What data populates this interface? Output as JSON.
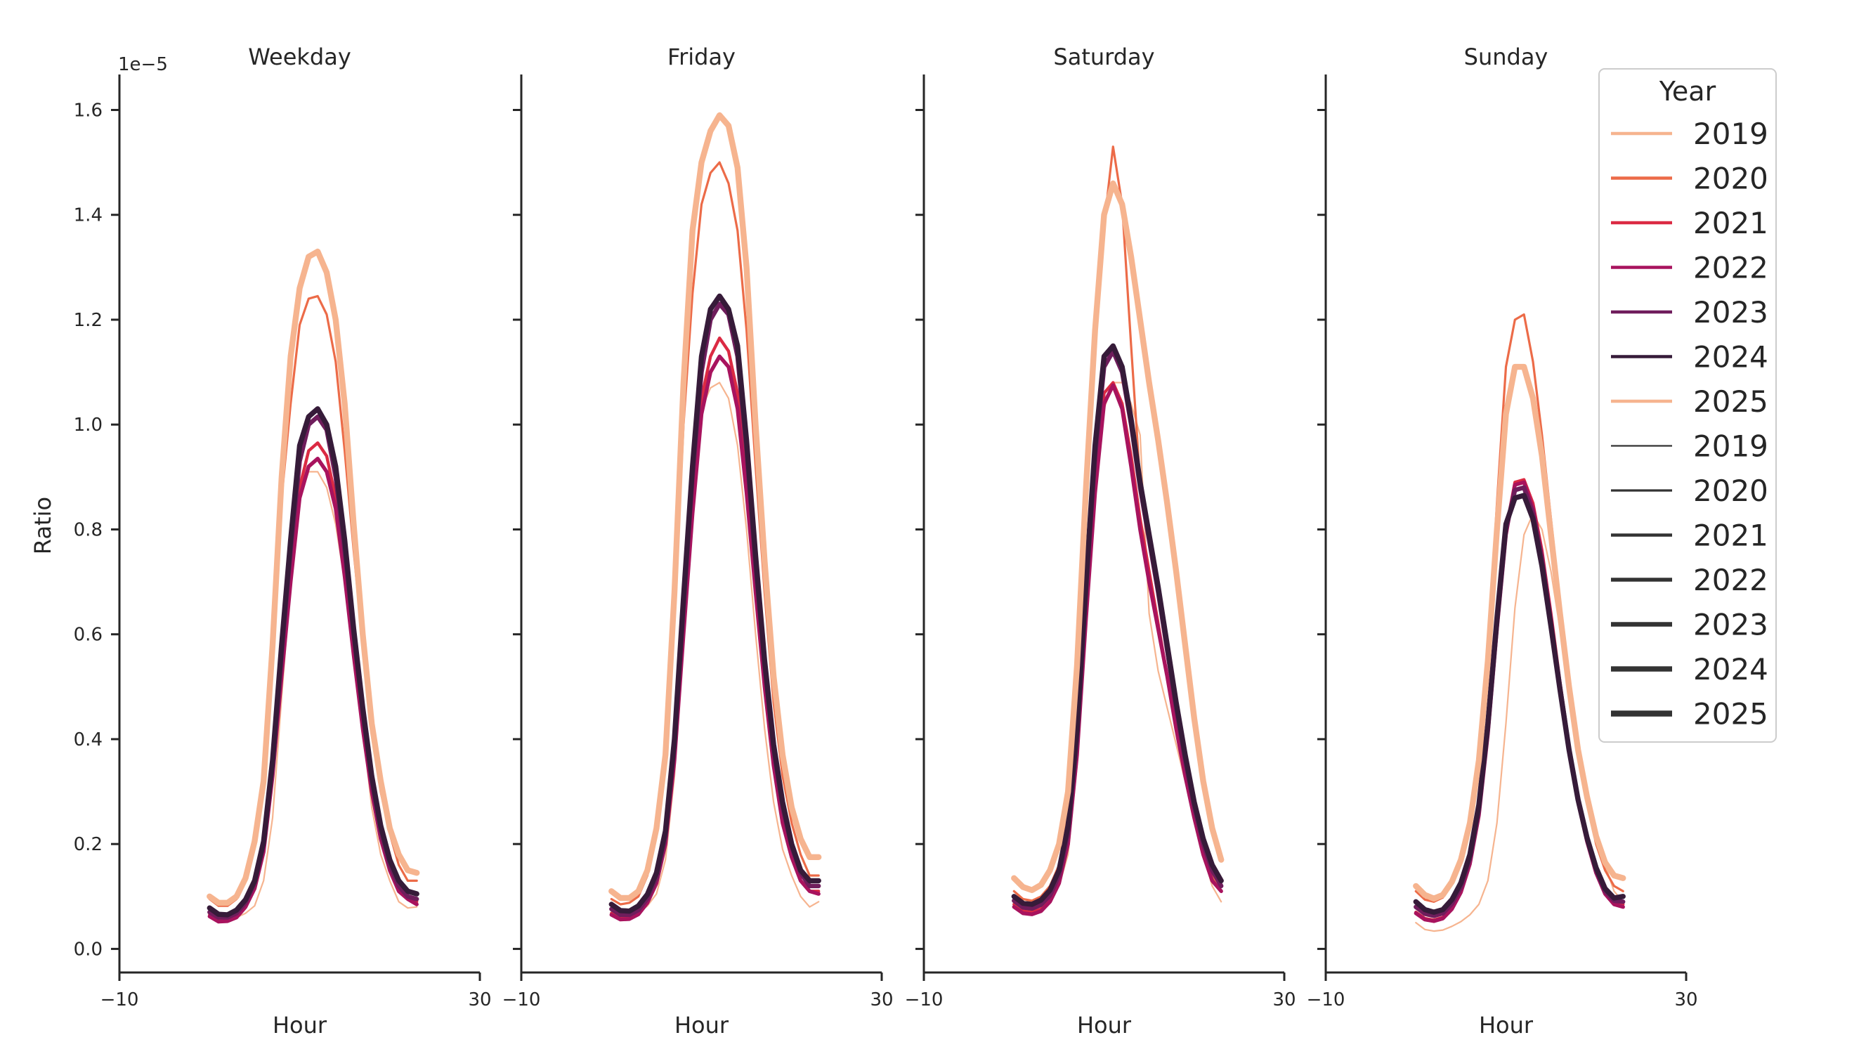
{
  "chart_data": {
    "type": "line",
    "ylabel": "Ratio",
    "y_offset_label": "1e−5",
    "y_ticks": [
      "0.0",
      "0.2",
      "0.4",
      "0.6",
      "0.8",
      "1.0",
      "1.2",
      "1.4",
      "1.6"
    ],
    "ylim": [
      -0.045,
      1.665
    ],
    "xlabel": "Hour",
    "x_ticks": [
      "−10",
      "30"
    ],
    "xlim": [
      -10,
      30
    ],
    "legend": {
      "title": "Year",
      "placement": "upper-right",
      "hue_entries": [
        "2019",
        "2020",
        "2021",
        "2022",
        "2023",
        "2024",
        "2025"
      ],
      "size_entries": [
        "2019",
        "2020",
        "2021",
        "2022",
        "2023",
        "2024",
        "2025"
      ]
    },
    "colors": {
      "2019": "#f6b48f",
      "2020": "#ec6b48",
      "2021": "#db2a43",
      "2022": "#a8135e",
      "2023": "#6f1d5c",
      "2024": "#361b39",
      "2025": "#f6b48f"
    },
    "hours": [
      0,
      1,
      2,
      3,
      4,
      5,
      6,
      7,
      8,
      9,
      10,
      11,
      12,
      13,
      14,
      15,
      16,
      17,
      18,
      19,
      20,
      21,
      22,
      23
    ],
    "panels": [
      {
        "title": "Weekday",
        "series": [
          {
            "year": "2019",
            "values": [
              0.062,
              0.05,
              0.052,
              0.06,
              0.068,
              0.082,
              0.13,
              0.25,
              0.48,
              0.7,
              0.86,
              0.91,
              0.91,
              0.88,
              0.81,
              0.7,
              0.56,
              0.42,
              0.27,
              0.18,
              0.13,
              0.09,
              0.078,
              0.08
            ]
          },
          {
            "year": "2020",
            "values": [
              0.095,
              0.082,
              0.082,
              0.095,
              0.13,
              0.2,
              0.32,
              0.57,
              0.86,
              1.04,
              1.19,
              1.24,
              1.245,
              1.21,
              1.12,
              0.95,
              0.76,
              0.58,
              0.41,
              0.3,
              0.22,
              0.16,
              0.13,
              0.13
            ]
          },
          {
            "year": "2021",
            "values": [
              0.065,
              0.055,
              0.057,
              0.065,
              0.085,
              0.12,
              0.19,
              0.34,
              0.53,
              0.72,
              0.88,
              0.95,
              0.965,
              0.94,
              0.86,
              0.73,
              0.58,
              0.44,
              0.32,
              0.22,
              0.16,
              0.12,
              0.1,
              0.09
            ]
          },
          {
            "year": "2022",
            "values": [
              0.062,
              0.052,
              0.053,
              0.06,
              0.08,
              0.115,
              0.185,
              0.33,
              0.52,
              0.7,
              0.86,
              0.92,
              0.935,
              0.91,
              0.84,
              0.71,
              0.56,
              0.42,
              0.3,
              0.21,
              0.15,
              0.11,
              0.095,
              0.085
            ]
          },
          {
            "year": "2023",
            "values": [
              0.07,
              0.06,
              0.06,
              0.068,
              0.088,
              0.125,
              0.2,
              0.35,
              0.56,
              0.76,
              0.93,
              1.0,
              1.015,
              0.99,
              0.9,
              0.76,
              0.6,
              0.45,
              0.32,
              0.225,
              0.16,
              0.12,
              0.1,
              0.095
            ]
          },
          {
            "year": "2024",
            "values": [
              0.078,
              0.066,
              0.065,
              0.074,
              0.094,
              0.13,
              0.205,
              0.36,
              0.58,
              0.78,
              0.96,
              1.015,
              1.03,
              1.0,
              0.92,
              0.78,
              0.61,
              0.46,
              0.33,
              0.235,
              0.17,
              0.13,
              0.11,
              0.105
            ]
          },
          {
            "year": "2025",
            "values": [
              0.1,
              0.088,
              0.088,
              0.1,
              0.135,
              0.205,
              0.32,
              0.58,
              0.9,
              1.13,
              1.26,
              1.32,
              1.33,
              1.29,
              1.2,
              1.04,
              0.81,
              0.6,
              0.43,
              0.32,
              0.23,
              0.18,
              0.15,
              0.145
            ]
          }
        ]
      },
      {
        "title": "Friday",
        "series": [
          {
            "year": "2019",
            "values": [
              0.07,
              0.058,
              0.058,
              0.068,
              0.082,
              0.105,
              0.17,
              0.33,
              0.6,
              0.85,
              1.03,
              1.07,
              1.08,
              1.05,
              0.96,
              0.8,
              0.6,
              0.42,
              0.28,
              0.19,
              0.14,
              0.1,
              0.08,
              0.09
            ]
          },
          {
            "year": "2020",
            "values": [
              0.095,
              0.085,
              0.088,
              0.1,
              0.14,
              0.22,
              0.36,
              0.64,
              1.0,
              1.25,
              1.42,
              1.48,
              1.5,
              1.46,
              1.37,
              1.18,
              0.92,
              0.68,
              0.47,
              0.33,
              0.24,
              0.18,
              0.14,
              0.14
            ]
          },
          {
            "year": "2021",
            "values": [
              0.068,
              0.058,
              0.058,
              0.068,
              0.09,
              0.13,
              0.21,
              0.38,
              0.62,
              0.85,
              1.05,
              1.13,
              1.165,
              1.14,
              1.06,
              0.89,
              0.69,
              0.51,
              0.36,
              0.25,
              0.18,
              0.13,
              0.11,
              0.11
            ]
          },
          {
            "year": "2022",
            "values": [
              0.065,
              0.056,
              0.057,
              0.066,
              0.088,
              0.125,
              0.2,
              0.36,
              0.6,
              0.83,
              1.02,
              1.1,
              1.13,
              1.11,
              1.03,
              0.87,
              0.68,
              0.5,
              0.35,
              0.24,
              0.175,
              0.13,
              0.11,
              0.105
            ]
          },
          {
            "year": "2023",
            "values": [
              0.076,
              0.065,
              0.065,
              0.074,
              0.096,
              0.135,
              0.215,
              0.39,
              0.65,
              0.9,
              1.1,
              1.2,
              1.23,
              1.21,
              1.13,
              0.95,
              0.73,
              0.54,
              0.38,
              0.27,
              0.195,
              0.145,
              0.12,
              0.12
            ]
          },
          {
            "year": "2024",
            "values": [
              0.085,
              0.073,
              0.072,
              0.082,
              0.104,
              0.145,
              0.225,
              0.4,
              0.67,
              0.92,
              1.13,
              1.22,
              1.245,
              1.22,
              1.15,
              0.97,
              0.75,
              0.55,
              0.39,
              0.28,
              0.2,
              0.15,
              0.13,
              0.13
            ]
          },
          {
            "year": "2025",
            "values": [
              0.11,
              0.097,
              0.097,
              0.11,
              0.15,
              0.23,
              0.37,
              0.68,
              1.08,
              1.37,
              1.5,
              1.56,
              1.59,
              1.57,
              1.49,
              1.3,
              1.0,
              0.74,
              0.52,
              0.37,
              0.27,
              0.21,
              0.175,
              0.175
            ]
          }
        ]
      },
      {
        "title": "Saturday",
        "series": [
          {
            "year": "2019",
            "values": [
              0.11,
              0.095,
              0.09,
              0.095,
              0.1,
              0.12,
              0.18,
              0.35,
              0.62,
              0.86,
              1.03,
              1.08,
              1.08,
              1.04,
              0.98,
              0.64,
              0.53,
              0.46,
              0.39,
              0.32,
              0.25,
              0.18,
              0.12,
              0.09
            ]
          },
          {
            "year": "2020",
            "values": [
              0.11,
              0.095,
              0.092,
              0.1,
              0.12,
              0.16,
              0.26,
              0.48,
              0.82,
              1.14,
              1.38,
              1.53,
              1.42,
              1.15,
              0.89,
              0.78,
              0.68,
              0.58,
              0.47,
              0.37,
              0.28,
              0.2,
              0.14,
              0.11
            ]
          },
          {
            "year": "2021",
            "values": [
              0.085,
              0.072,
              0.07,
              0.076,
              0.094,
              0.13,
              0.21,
              0.38,
              0.64,
              0.88,
              1.06,
              1.08,
              1.04,
              0.94,
              0.82,
              0.72,
              0.62,
              0.52,
              0.42,
              0.33,
              0.25,
              0.18,
              0.13,
              0.11
            ]
          },
          {
            "year": "2022",
            "values": [
              0.08,
              0.068,
              0.066,
              0.072,
              0.09,
              0.125,
              0.2,
              0.37,
              0.63,
              0.87,
              1.04,
              1.075,
              1.03,
              0.92,
              0.8,
              0.7,
              0.61,
              0.52,
              0.42,
              0.33,
              0.25,
              0.18,
              0.13,
              0.11
            ]
          },
          {
            "year": "2023",
            "values": [
              0.092,
              0.079,
              0.077,
              0.084,
              0.102,
              0.14,
              0.22,
              0.4,
              0.68,
              0.94,
              1.11,
              1.14,
              1.1,
              1.0,
              0.88,
              0.78,
              0.68,
              0.57,
              0.46,
              0.36,
              0.27,
              0.2,
              0.15,
              0.12
            ]
          },
          {
            "year": "2024",
            "values": [
              0.1,
              0.087,
              0.085,
              0.093,
              0.112,
              0.15,
              0.235,
              0.42,
              0.7,
              0.96,
              1.13,
              1.15,
              1.11,
              1.01,
              0.89,
              0.79,
              0.69,
              0.58,
              0.47,
              0.37,
              0.28,
              0.21,
              0.16,
              0.13
            ]
          },
          {
            "year": "2025",
            "values": [
              0.135,
              0.118,
              0.112,
              0.122,
              0.15,
              0.2,
              0.3,
              0.54,
              0.88,
              1.18,
              1.4,
              1.46,
              1.42,
              1.32,
              1.2,
              1.08,
              0.97,
              0.85,
              0.72,
              0.58,
              0.44,
              0.32,
              0.23,
              0.17
            ]
          }
        ]
      },
      {
        "title": "Sunday",
        "series": [
          {
            "year": "2019",
            "values": [
              0.05,
              0.037,
              0.034,
              0.036,
              0.043,
              0.052,
              0.065,
              0.085,
              0.13,
              0.24,
              0.43,
              0.65,
              0.79,
              0.83,
              0.8,
              0.72,
              0.61,
              0.49,
              0.39,
              0.3,
              0.22,
              0.16,
              0.11,
              0.09
            ]
          },
          {
            "year": "2020",
            "values": [
              0.11,
              0.094,
              0.09,
              0.098,
              0.125,
              0.17,
              0.24,
              0.36,
              0.56,
              0.85,
              1.11,
              1.2,
              1.21,
              1.12,
              0.98,
              0.82,
              0.66,
              0.51,
              0.38,
              0.28,
              0.2,
              0.15,
              0.12,
              0.11
            ]
          },
          {
            "year": "2021",
            "values": [
              0.07,
              0.058,
              0.055,
              0.06,
              0.078,
              0.11,
              0.165,
              0.26,
              0.42,
              0.62,
              0.8,
              0.89,
              0.895,
              0.85,
              0.76,
              0.64,
              0.51,
              0.39,
              0.29,
              0.21,
              0.15,
              0.11,
              0.09,
              0.085
            ]
          },
          {
            "year": "2022",
            "values": [
              0.068,
              0.056,
              0.053,
              0.058,
              0.076,
              0.108,
              0.162,
              0.255,
              0.41,
              0.61,
              0.79,
              0.885,
              0.89,
              0.84,
              0.75,
              0.63,
              0.5,
              0.38,
              0.28,
              0.205,
              0.145,
              0.105,
              0.085,
              0.08
            ]
          },
          {
            "year": "2023",
            "values": [
              0.08,
              0.067,
              0.063,
              0.068,
              0.086,
              0.118,
              0.172,
              0.265,
              0.42,
              0.62,
              0.8,
              0.875,
              0.88,
              0.83,
              0.74,
              0.62,
              0.5,
              0.38,
              0.285,
              0.21,
              0.15,
              0.11,
              0.092,
              0.09
            ]
          },
          {
            "year": "2024",
            "values": [
              0.09,
              0.075,
              0.07,
              0.075,
              0.094,
              0.126,
              0.18,
              0.275,
              0.43,
              0.63,
              0.81,
              0.86,
              0.865,
              0.82,
              0.73,
              0.615,
              0.495,
              0.38,
              0.285,
              0.212,
              0.155,
              0.115,
              0.097,
              0.1
            ]
          },
          {
            "year": "2025",
            "values": [
              0.12,
              0.103,
              0.096,
              0.103,
              0.128,
              0.17,
              0.24,
              0.36,
              0.55,
              0.8,
              1.02,
              1.11,
              1.11,
              1.05,
              0.94,
              0.79,
              0.64,
              0.5,
              0.38,
              0.29,
              0.215,
              0.165,
              0.14,
              0.135
            ]
          }
        ]
      }
    ]
  }
}
